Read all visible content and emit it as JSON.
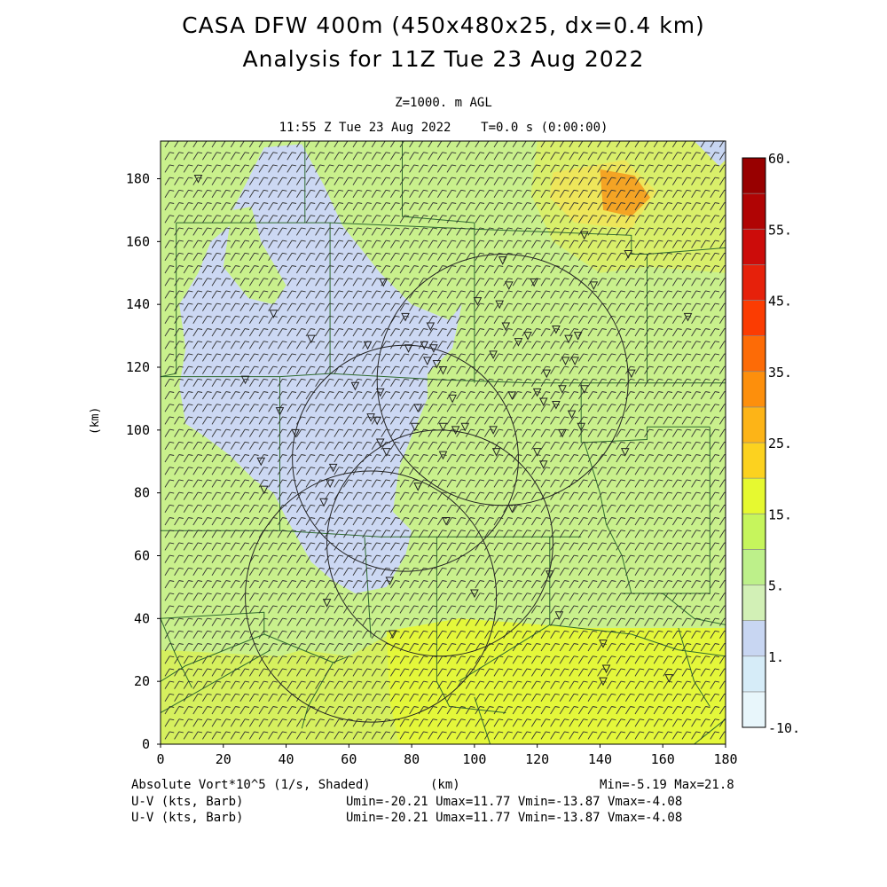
{
  "header": {
    "title1": "CASA DFW 400m (450x480x25, dx=0.4 km)",
    "title2": "Analysis for 11Z Tue 23 Aug 2022",
    "level": "Z=1000. m AGL",
    "time": "11:55 Z Tue 23 Aug 2022    T=0.0 s (0:00:00)"
  },
  "footer": {
    "field_label": "Absolute Vort*10^5 (1/s, Shaded)",
    "xunit": "(km)",
    "minmax": "Min=-5.19 Max=21.8",
    "barb1_label": "U-V (kts, Barb)",
    "barb1_stats": "Umin=-20.21 Umax=11.77 Vmin=-13.87 Vmax=-4.08",
    "barb2_label": "U-V (kts, Barb)",
    "barb2_stats": "Umin=-20.21 Umax=11.77 Vmin=-13.87 Vmax=-4.08"
  },
  "chart_data": {
    "type": "heatmap",
    "xlabel": "",
    "ylabel": "(km)",
    "xlim": [
      0,
      180
    ],
    "ylim": [
      0,
      192
    ],
    "xticks": [
      "0",
      "20",
      "40",
      "60",
      "80",
      "100",
      "120",
      "140",
      "160",
      "180"
    ],
    "yticks": [
      "0",
      "20",
      "40",
      "60",
      "80",
      "100",
      "120",
      "140",
      "160",
      "180"
    ],
    "colorbar": {
      "labels": [
        "-10.",
        "1.",
        "5.",
        "15.",
        "25.",
        "35.",
        "45.",
        "55.",
        "60."
      ],
      "label_values": [
        -10,
        1,
        5,
        15,
        25,
        35,
        45,
        55,
        60
      ],
      "colors": [
        "#e8f6fb",
        "#d6ecf8",
        "#c8d6f2",
        "#d2f0b6",
        "#bdf08a",
        "#c6f55c",
        "#e6f930",
        "#fcd21f",
        "#fdb417",
        "#fd8f0c",
        "#fd6b06",
        "#fb3c02",
        "#e6210b",
        "#cc0c0a",
        "#b00404",
        "#980000"
      ]
    },
    "field_regions": [
      {
        "name": "low-vorticity band",
        "value": 2,
        "color": "#ccd8f3"
      },
      {
        "name": "background",
        "value": 6,
        "color": "#c9f08c"
      },
      {
        "name": "southern band",
        "value": 14,
        "color": "#e4f73a"
      },
      {
        "name": "northeast maximum",
        "value": 21.8,
        "color": "#f4a424"
      }
    ],
    "radar_rings": [
      {
        "cx": 67,
        "cy": 47,
        "r": 40
      },
      {
        "cx": 78,
        "cy": 91,
        "r": 36
      },
      {
        "cx": 89,
        "cy": 64,
        "r": 36
      },
      {
        "cx": 109,
        "cy": 116,
        "r": 40
      }
    ],
    "stations": [
      [
        12,
        180
      ],
      [
        27,
        116
      ],
      [
        32,
        90
      ],
      [
        33,
        81
      ],
      [
        36,
        137
      ],
      [
        38,
        106
      ],
      [
        43,
        99
      ],
      [
        48,
        129
      ],
      [
        52,
        77
      ],
      [
        53,
        45
      ],
      [
        54,
        83
      ],
      [
        55,
        88
      ],
      [
        62,
        114
      ],
      [
        66,
        127
      ],
      [
        67,
        104
      ],
      [
        69,
        103
      ],
      [
        70,
        96
      ],
      [
        70,
        112
      ],
      [
        72,
        93
      ],
      [
        74,
        35
      ],
      [
        71,
        147
      ],
      [
        73,
        52
      ],
      [
        78,
        136
      ],
      [
        79,
        126
      ],
      [
        81,
        101
      ],
      [
        82,
        82
      ],
      [
        82,
        107
      ],
      [
        84,
        127
      ],
      [
        85,
        122
      ],
      [
        86,
        133
      ],
      [
        87,
        126
      ],
      [
        88,
        121
      ],
      [
        90,
        119
      ],
      [
        90,
        92
      ],
      [
        90,
        101
      ],
      [
        91,
        71
      ],
      [
        93,
        110
      ],
      [
        94,
        100
      ],
      [
        97,
        101
      ],
      [
        100,
        48
      ],
      [
        101,
        141
      ],
      [
        106,
        100
      ],
      [
        106,
        124
      ],
      [
        107,
        93
      ],
      [
        108,
        140
      ],
      [
        109,
        154
      ],
      [
        110,
        133
      ],
      [
        111,
        146
      ],
      [
        112,
        111
      ],
      [
        112,
        75
      ],
      [
        114,
        128
      ],
      [
        117,
        130
      ],
      [
        119,
        147
      ],
      [
        120,
        112
      ],
      [
        120,
        93
      ],
      [
        122,
        109
      ],
      [
        122,
        89
      ],
      [
        123,
        118
      ],
      [
        124,
        54
      ],
      [
        126,
        132
      ],
      [
        126,
        108
      ],
      [
        127,
        41
      ],
      [
        128,
        113
      ],
      [
        128,
        99
      ],
      [
        129,
        122
      ],
      [
        130,
        129
      ],
      [
        131,
        105
      ],
      [
        132,
        122
      ],
      [
        133,
        130
      ],
      [
        134,
        101
      ],
      [
        135,
        113
      ],
      [
        135,
        162
      ],
      [
        138,
        146
      ],
      [
        141,
        20
      ],
      [
        141,
        32
      ],
      [
        142,
        24
      ],
      [
        148,
        93
      ],
      [
        149,
        156
      ],
      [
        150,
        118
      ],
      [
        162,
        21
      ],
      [
        168,
        136
      ]
    ]
  }
}
